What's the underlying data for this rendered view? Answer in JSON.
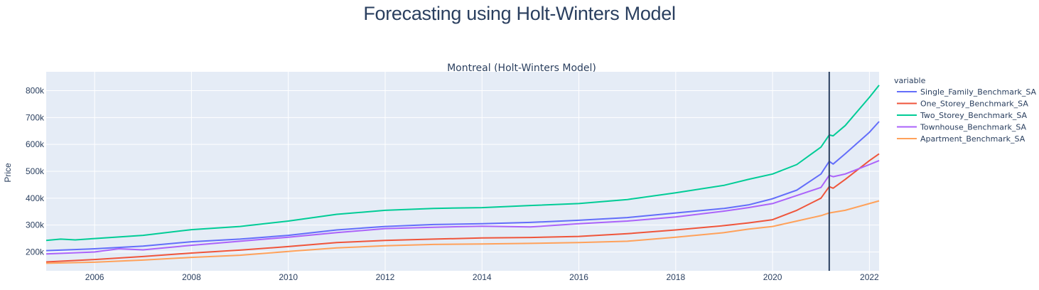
{
  "page_title": "Forecasting using Holt-Winters Model",
  "colors": {
    "plot_bg": "#e5ecf6",
    "text": "#2a3f5f",
    "forecast_line": "#2a3f5f"
  },
  "chart_data": {
    "type": "line",
    "title": "Montreal (Holt-Winters Model)",
    "xlabel": "",
    "ylabel": "Price",
    "xlim": [
      2005.0,
      2022.2
    ],
    "ylim": [
      130000,
      870000
    ],
    "xticks": [
      2006,
      2008,
      2010,
      2012,
      2014,
      2016,
      2018,
      2020,
      2022
    ],
    "yticks": [
      200000,
      300000,
      400000,
      500000,
      600000,
      700000,
      800000
    ],
    "ytick_labels": [
      "200k",
      "300k",
      "400k",
      "500k",
      "600k",
      "700k",
      "800k"
    ],
    "grid": true,
    "forecast_start": 2021.17,
    "legend": {
      "title": "variable",
      "placement": "right"
    },
    "series": [
      {
        "name": "Single_Family_Benchmark_SA",
        "color": "#636efa",
        "points": [
          [
            2005.0,
            205000
          ],
          [
            2006,
            212000
          ],
          [
            2007,
            222000
          ],
          [
            2008,
            238000
          ],
          [
            2009,
            248000
          ],
          [
            2010,
            262000
          ],
          [
            2011,
            282000
          ],
          [
            2012,
            295000
          ],
          [
            2013,
            302000
          ],
          [
            2014,
            305000
          ],
          [
            2015,
            310000
          ],
          [
            2016,
            318000
          ],
          [
            2017,
            328000
          ],
          [
            2018,
            345000
          ],
          [
            2019,
            362000
          ],
          [
            2019.5,
            375000
          ],
          [
            2020,
            398000
          ],
          [
            2020.5,
            430000
          ],
          [
            2021.0,
            490000
          ],
          [
            2021.17,
            537000
          ],
          [
            2021.25,
            527000
          ],
          [
            2021.5,
            565000
          ],
          [
            2022,
            645000
          ],
          [
            2022.2,
            685000
          ]
        ]
      },
      {
        "name": "One_Storey_Benchmark_SA",
        "color": "#ef553b",
        "points": [
          [
            2005.0,
            163000
          ],
          [
            2006,
            172000
          ],
          [
            2007,
            183000
          ],
          [
            2008,
            196000
          ],
          [
            2009,
            207000
          ],
          [
            2010,
            220000
          ],
          [
            2011,
            235000
          ],
          [
            2012,
            243000
          ],
          [
            2013,
            248000
          ],
          [
            2014,
            252000
          ],
          [
            2015,
            254000
          ],
          [
            2016,
            258000
          ],
          [
            2017,
            268000
          ],
          [
            2018,
            282000
          ],
          [
            2019,
            298000
          ],
          [
            2019.5,
            308000
          ],
          [
            2020,
            320000
          ],
          [
            2020.5,
            355000
          ],
          [
            2021.0,
            400000
          ],
          [
            2021.17,
            443000
          ],
          [
            2021.25,
            437000
          ],
          [
            2021.5,
            470000
          ],
          [
            2022,
            540000
          ],
          [
            2022.2,
            565000
          ]
        ]
      },
      {
        "name": "Two_Storey_Benchmark_SA",
        "color": "#00cc96",
        "points": [
          [
            2005.0,
            243000
          ],
          [
            2005.3,
            248000
          ],
          [
            2005.6,
            245000
          ],
          [
            2006,
            250000
          ],
          [
            2007,
            262000
          ],
          [
            2008,
            283000
          ],
          [
            2009,
            295000
          ],
          [
            2010,
            315000
          ],
          [
            2011,
            340000
          ],
          [
            2012,
            355000
          ],
          [
            2013,
            362000
          ],
          [
            2014,
            365000
          ],
          [
            2015,
            373000
          ],
          [
            2016,
            380000
          ],
          [
            2017,
            395000
          ],
          [
            2018,
            420000
          ],
          [
            2019,
            448000
          ],
          [
            2019.5,
            470000
          ],
          [
            2020,
            490000
          ],
          [
            2020.5,
            525000
          ],
          [
            2021.0,
            590000
          ],
          [
            2021.17,
            635000
          ],
          [
            2021.25,
            632000
          ],
          [
            2021.5,
            670000
          ],
          [
            2022,
            775000
          ],
          [
            2022.2,
            820000
          ]
        ]
      },
      {
        "name": "Townhouse_Benchmark_SA",
        "color": "#ab63fa",
        "points": [
          [
            2005.0,
            193000
          ],
          [
            2006,
            200000
          ],
          [
            2006.5,
            212000
          ],
          [
            2007,
            208000
          ],
          [
            2008,
            225000
          ],
          [
            2009,
            240000
          ],
          [
            2010,
            255000
          ],
          [
            2011,
            272000
          ],
          [
            2012,
            287000
          ],
          [
            2013,
            292000
          ],
          [
            2014,
            296000
          ],
          [
            2015,
            293000
          ],
          [
            2016,
            305000
          ],
          [
            2017,
            315000
          ],
          [
            2018,
            330000
          ],
          [
            2019,
            352000
          ],
          [
            2019.5,
            365000
          ],
          [
            2020,
            380000
          ],
          [
            2020.5,
            410000
          ],
          [
            2021.0,
            440000
          ],
          [
            2021.17,
            485000
          ],
          [
            2021.25,
            480000
          ],
          [
            2021.5,
            490000
          ],
          [
            2022,
            525000
          ],
          [
            2022.2,
            540000
          ]
        ]
      },
      {
        "name": "Apartment_Benchmark_SA",
        "color": "#ffa15a",
        "points": [
          [
            2005.0,
            158000
          ],
          [
            2006,
            162000
          ],
          [
            2007,
            170000
          ],
          [
            2008,
            180000
          ],
          [
            2009,
            188000
          ],
          [
            2010,
            202000
          ],
          [
            2011,
            215000
          ],
          [
            2012,
            223000
          ],
          [
            2013,
            228000
          ],
          [
            2014,
            230000
          ],
          [
            2015,
            232000
          ],
          [
            2016,
            235000
          ],
          [
            2017,
            240000
          ],
          [
            2018,
            255000
          ],
          [
            2019,
            272000
          ],
          [
            2019.5,
            285000
          ],
          [
            2020,
            295000
          ],
          [
            2020.5,
            315000
          ],
          [
            2021.0,
            335000
          ],
          [
            2021.17,
            345000
          ],
          [
            2021.5,
            355000
          ],
          [
            2022,
            380000
          ],
          [
            2022.2,
            390000
          ]
        ]
      }
    ]
  }
}
